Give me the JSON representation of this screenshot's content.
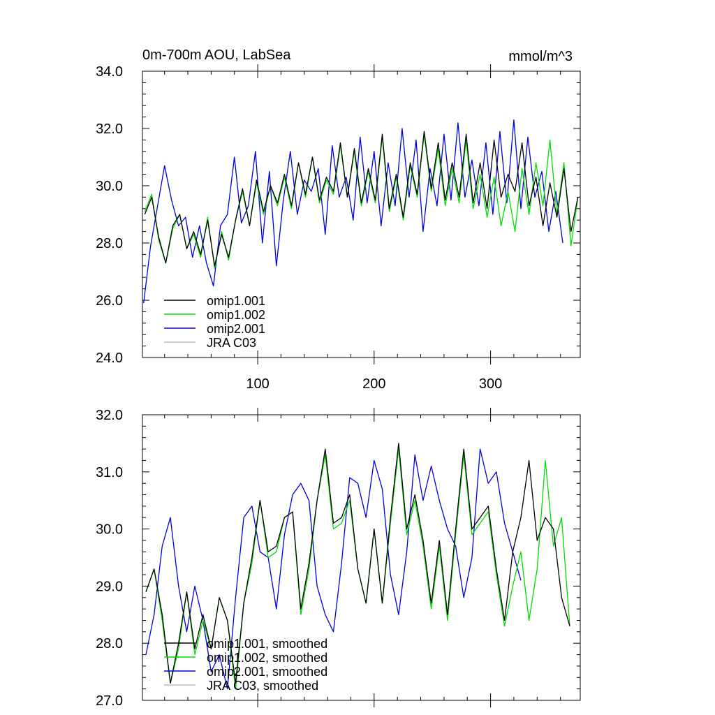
{
  "colors": {
    "omip1_001": "#000000",
    "omip1_002": "#00dd00",
    "omip2_001": "#0000dd",
    "jra_c03": "#bbbbbb"
  },
  "chart_data": [
    {
      "type": "line",
      "title": "0m-700m AOU, LabSea",
      "units": "mmol/m^3",
      "xlabel": "",
      "ylabel": "",
      "xlim": [
        1,
        377
      ],
      "ylim": [
        24.0,
        34.0
      ],
      "xticks": [
        100,
        200,
        300
      ],
      "xtick_labels": [
        "100",
        "200",
        "300"
      ],
      "yticks": [
        24.0,
        26.0,
        28.0,
        30.0,
        32.0,
        34.0
      ],
      "ytick_labels": [
        "24.0",
        "26.0",
        "28.0",
        "30.0",
        "32.0",
        "34.0"
      ],
      "legend": "bottom-left",
      "series": [
        {
          "name": "omip1.001",
          "color_key": "omip1_001",
          "x_start": 3,
          "x_step": 6,
          "values": [
            29.0,
            29.6,
            28.2,
            27.3,
            28.6,
            29.0,
            27.8,
            28.4,
            27.6,
            28.8,
            27.2,
            28.3,
            27.5,
            28.8,
            29.9,
            28.6,
            30.2,
            29.1,
            30.0,
            29.4,
            30.4,
            29.3,
            30.8,
            29.7,
            31.0,
            29.5,
            30.3,
            29.8,
            31.5,
            29.6,
            31.3,
            29.4,
            30.6,
            29.5,
            31.8,
            29.2,
            30.4,
            28.9,
            30.8,
            29.7,
            31.9,
            29.9,
            31.5,
            29.5,
            30.8,
            29.6,
            31.8,
            29.4,
            30.8,
            29.2,
            31.6,
            29.6,
            30.4,
            29.8,
            31.5,
            29.3,
            30.3,
            28.6,
            30.1,
            28.9,
            30.6,
            28.4,
            29.6
          ]
        },
        {
          "name": "omip1.002",
          "color_key": "omip1_002",
          "x_start": 3,
          "x_step": 6,
          "values": [
            29.1,
            29.7,
            28.1,
            27.3,
            28.5,
            29.0,
            27.8,
            28.3,
            27.5,
            28.9,
            27.1,
            28.4,
            27.4,
            28.8,
            29.8,
            28.6,
            30.1,
            29.0,
            30.0,
            29.3,
            30.3,
            29.2,
            30.8,
            29.6,
            31.0,
            29.4,
            30.2,
            29.7,
            31.4,
            29.6,
            31.2,
            29.3,
            30.5,
            29.4,
            31.7,
            29.1,
            30.3,
            28.8,
            30.7,
            29.6,
            31.8,
            29.8,
            31.3,
            29.3,
            30.6,
            29.4,
            31.6,
            29.2,
            30.4,
            28.9,
            30.3,
            28.6,
            29.8,
            28.4,
            30.6,
            29.0,
            30.8,
            29.3,
            31.6,
            29.0,
            30.8,
            27.9,
            29.6
          ]
        },
        {
          "name": "omip2.001",
          "color_key": "omip2_001",
          "x_start": 2,
          "x_step": 6,
          "values": [
            25.9,
            27.9,
            29.3,
            30.7,
            29.5,
            28.6,
            28.9,
            27.5,
            28.6,
            27.3,
            26.5,
            28.6,
            29.0,
            31.0,
            28.7,
            29.3,
            31.2,
            28.0,
            30.5,
            27.2,
            29.5,
            31.2,
            29.0,
            30.2,
            29.8,
            30.6,
            28.3,
            31.4,
            29.6,
            30.3,
            28.8,
            31.7,
            29.4,
            31.2,
            28.6,
            30.8,
            29.3,
            32.0,
            29.6,
            31.6,
            28.4,
            30.6,
            29.3,
            31.8,
            29.5,
            32.2,
            29.6,
            30.9,
            29.3,
            31.5,
            29.0,
            31.9,
            29.4,
            32.3,
            29.2,
            31.7,
            29.6,
            30.5,
            28.4,
            29.8,
            28.0
          ]
        },
        {
          "name": "JRA C03",
          "color_key": "jra_c03",
          "x_start": 0,
          "x_step": 0,
          "values": []
        }
      ]
    },
    {
      "type": "line",
      "title": "",
      "xlabel": "",
      "ylabel": "",
      "xlim": [
        1,
        377
      ],
      "ylim": [
        27.0,
        32.0
      ],
      "xticks": [
        100,
        200,
        300
      ],
      "yticks": [
        27.0,
        28.0,
        29.0,
        30.0,
        31.0,
        32.0
      ],
      "ytick_labels": [
        "27.0",
        "28.0",
        "29.0",
        "30.0",
        "31.0",
        "32.0"
      ],
      "legend": "bottom-left",
      "series": [
        {
          "name": "omip1.001, smoothed",
          "color_key": "omip1_001",
          "x_start": 4,
          "x_step": 7,
          "values": [
            28.9,
            29.3,
            28.5,
            27.3,
            28.0,
            28.9,
            27.9,
            28.5,
            27.9,
            28.8,
            28.4,
            27.3,
            28.7,
            29.5,
            30.5,
            29.6,
            29.7,
            30.2,
            30.3,
            28.6,
            29.4,
            30.5,
            31.4,
            30.1,
            30.2,
            30.6,
            29.3,
            28.7,
            30.0,
            28.7,
            30.2,
            31.5,
            30.0,
            30.6,
            29.8,
            28.7,
            29.8,
            28.5,
            30.0,
            31.4,
            30.0,
            30.2,
            30.4,
            29.3,
            28.4,
            29.6,
            30.2,
            31.2,
            29.8,
            30.2,
            30.0,
            28.8,
            28.3
          ]
        },
        {
          "name": "omip1.002, smoothed",
          "color_key": "omip1_002",
          "x_start": 4,
          "x_step": 7,
          "values": [
            28.9,
            29.3,
            28.4,
            27.3,
            27.9,
            28.9,
            27.8,
            28.4,
            27.9,
            28.8,
            28.4,
            27.2,
            28.7,
            29.4,
            30.5,
            29.5,
            29.6,
            30.2,
            30.3,
            28.5,
            29.3,
            30.5,
            31.3,
            30.0,
            30.1,
            30.5,
            29.3,
            28.7,
            30.0,
            28.7,
            30.1,
            31.4,
            29.9,
            30.5,
            29.7,
            28.6,
            29.7,
            28.4,
            29.9,
            31.3,
            29.9,
            30.1,
            30.3,
            29.2,
            28.3,
            29.0,
            29.6,
            28.4,
            29.3,
            31.2,
            29.7,
            30.2,
            28.3
          ]
        },
        {
          "name": "omip2.001, smoothed",
          "color_key": "omip2_001",
          "x_start": 4,
          "x_step": 7,
          "values": [
            27.8,
            28.5,
            29.7,
            30.2,
            29.0,
            28.2,
            29.0,
            28.4,
            27.5,
            27.8,
            27.2,
            28.8,
            30.2,
            30.4,
            29.6,
            29.5,
            28.6,
            29.9,
            30.6,
            30.8,
            30.5,
            29.0,
            28.5,
            28.2,
            29.4,
            30.9,
            30.8,
            30.2,
            31.2,
            30.7,
            29.2,
            28.5,
            29.6,
            31.3,
            30.5,
            31.1,
            30.5,
            30.0,
            29.7,
            28.8,
            29.5,
            31.4,
            30.8,
            31.0,
            30.1,
            29.6,
            29.1
          ]
        },
        {
          "name": "JRA C03, smoothed",
          "color_key": "jra_c03",
          "x_start": 0,
          "x_step": 0,
          "values": []
        }
      ]
    }
  ]
}
